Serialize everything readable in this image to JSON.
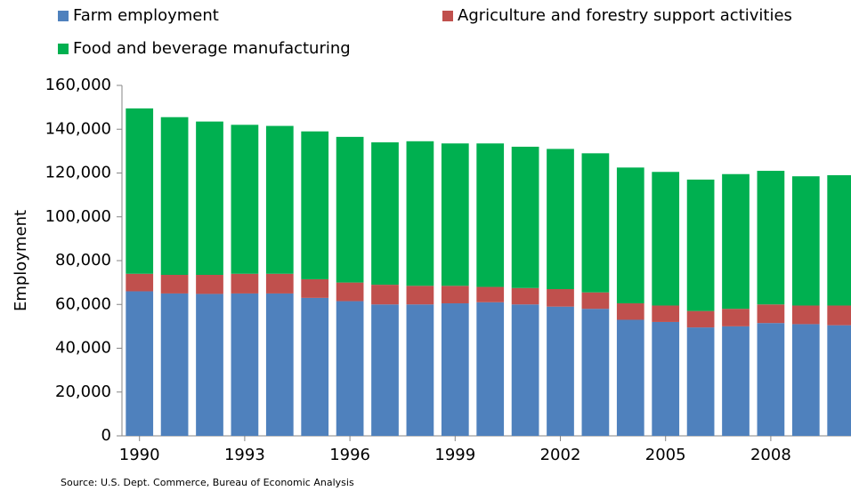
{
  "chart_data": {
    "type": "stacked_bar",
    "categories": [
      "1990",
      null,
      null,
      "1993",
      null,
      null,
      "1996",
      null,
      null,
      "1999",
      null,
      null,
      "2002",
      null,
      null,
      "2005",
      null,
      null,
      "2008",
      null,
      null
    ],
    "series": [
      {
        "name": "Farm employment",
        "color": "#4f81bd",
        "values": [
          66000,
          65000,
          64800,
          65000,
          65000,
          63000,
          61500,
          60000,
          60000,
          60500,
          61000,
          60000,
          59000,
          58000,
          53000,
          52000,
          49500,
          50000,
          51500,
          51000,
          50500
        ]
      },
      {
        "name": "Agriculture and forestry support activities",
        "color": "#c0504d",
        "values": [
          8000,
          8500,
          8700,
          9000,
          9000,
          8500,
          8500,
          9000,
          8500,
          8000,
          7000,
          7500,
          8000,
          7500,
          7500,
          7500,
          7500,
          8000,
          8500,
          8500,
          9000
        ]
      },
      {
        "name": "Food and beverage manufacturing",
        "color": "#00b050",
        "values": [
          75500,
          72000,
          70000,
          68000,
          67500,
          67500,
          66500,
          65000,
          66000,
          65000,
          65500,
          64500,
          64000,
          63500,
          62000,
          61000,
          60000,
          61500,
          61000,
          59000,
          59500
        ]
      }
    ],
    "y_label": "Employment",
    "source": "Source: U.S. Dept. Commerce, Bureau of Economic Analysis",
    "ylim": [
      0,
      160000
    ],
    "yticks": [
      0,
      {
        "value": 20000,
        "label": "20,000"
      },
      {
        "value": 40000,
        "label": "40,000"
      },
      {
        "value": 60000,
        "label": "60,000"
      },
      {
        "value": 80000,
        "label": "80,000"
      },
      {
        "value": 100000,
        "label": "100,000"
      },
      {
        "value": 120000,
        "label": "120,000"
      },
      {
        "value": 140000,
        "label": "140,000"
      },
      {
        "value": 160000,
        "label": "160,000"
      }
    ],
    "grid": false
  }
}
